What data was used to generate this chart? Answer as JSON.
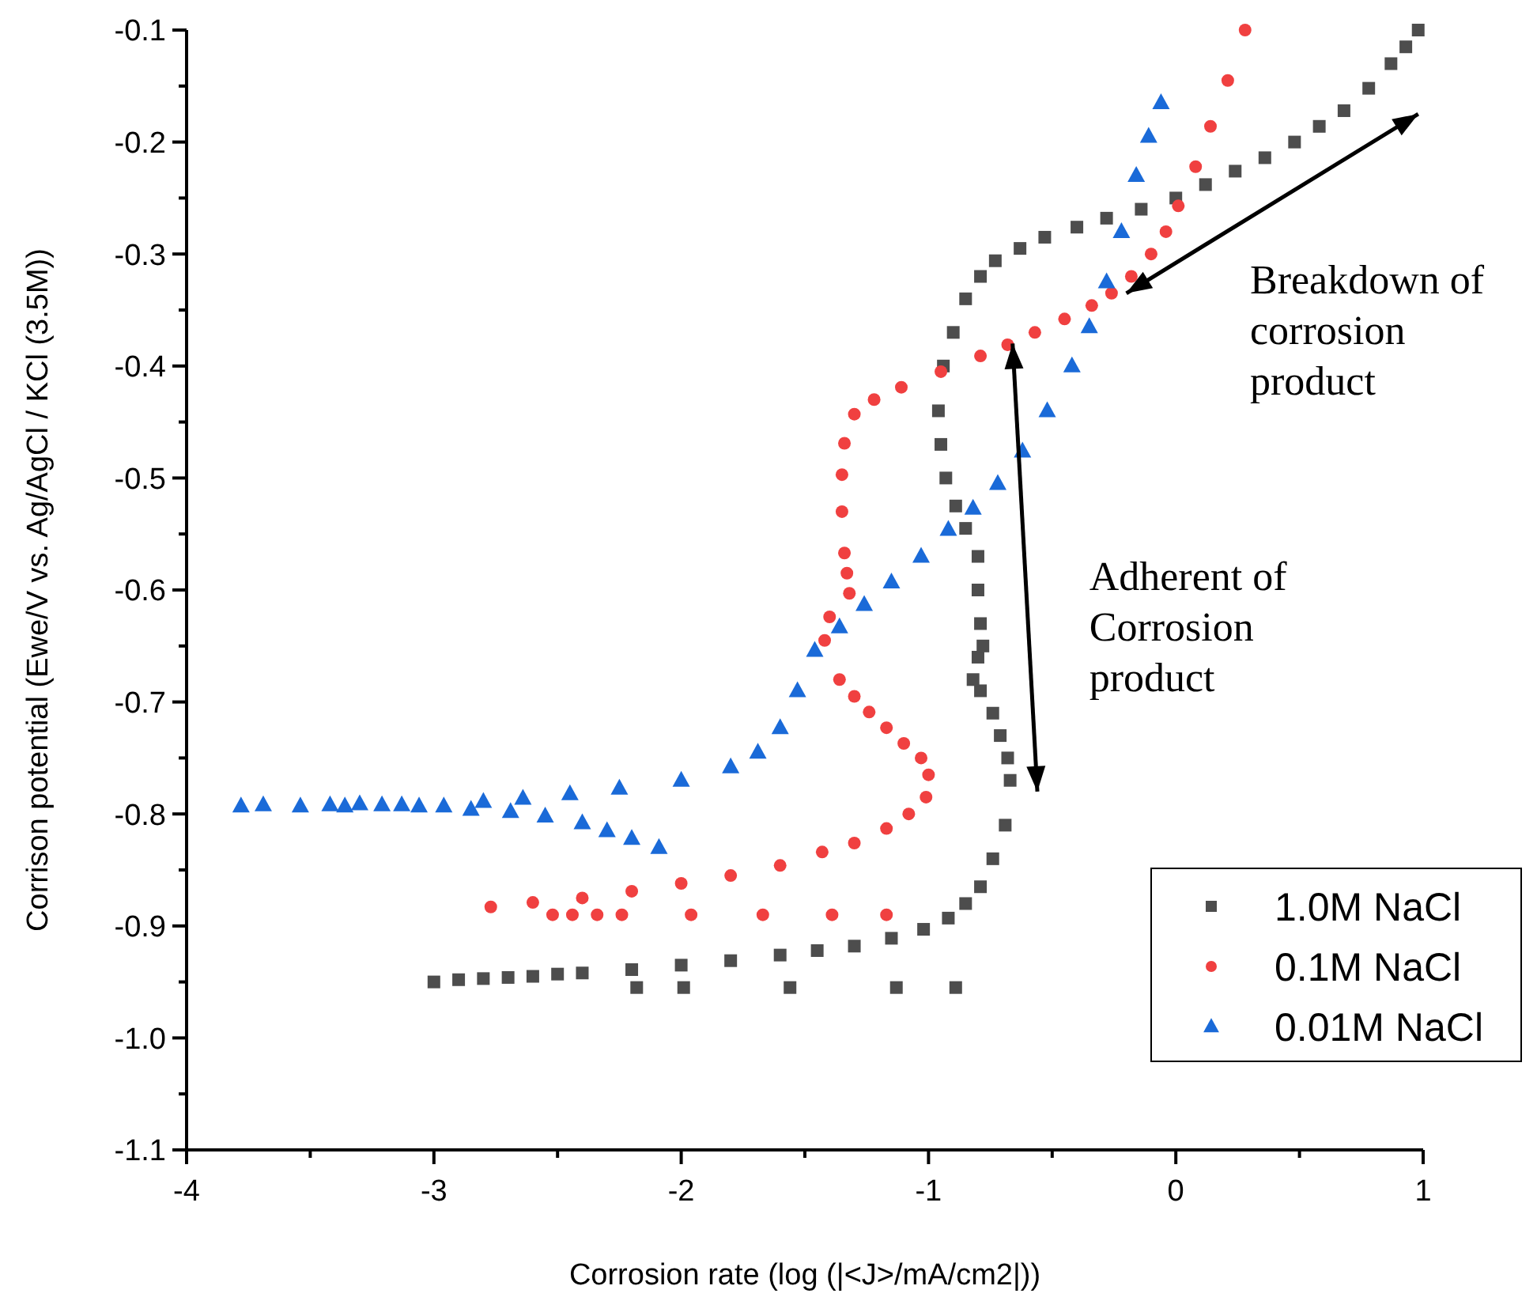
{
  "chart_data": {
    "type": "scatter",
    "xlabel": "Corrosion rate (log (|<J>/mA/cm2|))",
    "ylabel": "Corrison potential (Ewe/V vs. Ag/AgCl / KCl (3.5M))",
    "xlim": [
      -4,
      1
    ],
    "ylim": [
      -1.1,
      -0.1
    ],
    "xticks": [
      -4,
      {
        "value": -3.5,
        "label": null
      },
      -3,
      {
        "value": -2.5,
        "label": null
      },
      -2,
      {
        "value": -1.5,
        "label": null
      },
      -1,
      {
        "value": -0.5,
        "label": null
      },
      0,
      {
        "value": 0.5,
        "label": null
      },
      1
    ],
    "yticks": [
      {
        "value": -1.1,
        "label": "-1.1"
      },
      {
        "value": -1.05,
        "label": null
      },
      {
        "value": -1.0,
        "label": "-1.0"
      },
      {
        "value": -0.95,
        "label": null
      },
      {
        "value": -0.9,
        "label": "-0.9"
      },
      {
        "value": -0.85,
        "label": null
      },
      {
        "value": -0.8,
        "label": "-0.8"
      },
      {
        "value": -0.75,
        "label": null
      },
      {
        "value": -0.7,
        "label": "-0.7"
      },
      {
        "value": -0.65,
        "label": null
      },
      {
        "value": -0.6,
        "label": "-0.6"
      },
      {
        "value": -0.55,
        "label": null
      },
      {
        "value": -0.5,
        "label": "-0.5"
      },
      {
        "value": -0.45,
        "label": null
      },
      {
        "value": -0.4,
        "label": "-0.4"
      },
      {
        "value": -0.35,
        "label": null
      },
      {
        "value": -0.3,
        "label": "-0.3"
      },
      {
        "value": -0.25,
        "label": null
      },
      {
        "value": -0.2,
        "label": "-0.2"
      },
      {
        "value": -0.15,
        "label": null
      },
      {
        "value": -0.1,
        "label": "-0.1"
      }
    ],
    "legend": "bottom right",
    "grid": false,
    "annotations": [
      "Breakdown of\ncorrosion\nproduct",
      "Adherent of\nCorrosion\nproduct"
    ],
    "series": [
      {
        "name": "1.0M NaCl",
        "color": "#4d4d4d",
        "marker": "square",
        "x": [
          -2.18,
          -1.99,
          -1.56,
          -1.13,
          -0.89,
          -3.0,
          -2.9,
          -2.8,
          -2.7,
          -2.6,
          -2.5,
          -2.4,
          -2.2,
          -2.0,
          -1.8,
          -1.6,
          -1.45,
          -1.3,
          -1.15,
          -1.02,
          -0.92,
          -0.85,
          -0.79,
          -0.74,
          -0.69,
          -0.67,
          -0.68,
          -0.71,
          -0.74,
          -0.79,
          -0.82,
          -0.8,
          -0.78,
          -0.79,
          -0.8,
          -0.8,
          -0.85,
          -0.89,
          -0.93,
          -0.95,
          -0.96,
          -0.94,
          -0.9,
          -0.85,
          -0.79,
          -0.73,
          -0.63,
          -0.53,
          -0.4,
          -0.28,
          -0.14,
          0,
          0.12,
          0.24,
          0.36,
          0.48,
          0.58,
          0.68,
          0.78,
          0.87,
          0.93,
          0.98
        ],
        "values": [
          -0.955,
          -0.955,
          -0.955,
          -0.955,
          -0.955,
          -0.95,
          -0.948,
          -0.947,
          -0.946,
          -0.945,
          -0.943,
          -0.942,
          -0.939,
          -0.935,
          -0.931,
          -0.926,
          -0.922,
          -0.918,
          -0.911,
          -0.903,
          -0.893,
          -0.88,
          -0.865,
          -0.84,
          -0.81,
          -0.77,
          -0.75,
          -0.73,
          -0.71,
          -0.69,
          -0.68,
          -0.66,
          -0.65,
          -0.63,
          -0.6,
          -0.57,
          -0.545,
          -0.525,
          -0.5,
          -0.47,
          -0.44,
          -0.4,
          -0.37,
          -0.34,
          -0.32,
          -0.306,
          -0.295,
          -0.285,
          -0.276,
          -0.268,
          -0.26,
          -0.25,
          -0.238,
          -0.226,
          -0.214,
          -0.2,
          -0.186,
          -0.172,
          -0.152,
          -0.13,
          -0.115,
          -0.1
        ]
      },
      {
        "name": "0.1M NaCl",
        "color": "#f04040",
        "marker": "circle",
        "x": [
          -2.52,
          -2.44,
          -2.34,
          -2.24,
          -1.96,
          -1.67,
          -1.39,
          -1.17,
          -2.77,
          -2.6,
          -2.4,
          -2.2,
          -2.0,
          -1.8,
          -1.6,
          -1.43,
          -1.3,
          -1.17,
          -1.08,
          -1.01,
          -1.0,
          -1.03,
          -1.1,
          -1.17,
          -1.24,
          -1.3,
          -1.36,
          -1.42,
          -1.4,
          -1.32,
          -1.33,
          -1.34,
          -1.35,
          -1.35,
          -1.34,
          -1.3,
          -1.22,
          -1.11,
          -0.95,
          -0.79,
          -0.68,
          -0.57,
          -0.45,
          -0.34,
          -0.26,
          -0.18,
          -0.1,
          -0.04,
          0.01,
          0.08,
          0.14,
          0.21,
          0.28
        ],
        "values": [
          -0.89,
          -0.89,
          -0.89,
          -0.89,
          -0.89,
          -0.89,
          -0.89,
          -0.89,
          -0.883,
          -0.879,
          -0.875,
          -0.869,
          -0.862,
          -0.855,
          -0.846,
          -0.834,
          -0.826,
          -0.813,
          -0.8,
          -0.785,
          -0.765,
          -0.75,
          -0.737,
          -0.723,
          -0.709,
          -0.695,
          -0.68,
          -0.645,
          -0.624,
          -0.603,
          -0.585,
          -0.567,
          -0.53,
          -0.497,
          -0.469,
          -0.443,
          -0.43,
          -0.419,
          -0.405,
          -0.391,
          -0.381,
          -0.37,
          -0.358,
          -0.346,
          -0.335,
          -0.32,
          -0.3,
          -0.28,
          -0.257,
          -0.222,
          -0.186,
          -0.145,
          -0.1
        ]
      },
      {
        "name": "0.01M NaCl",
        "color": "#1a6ad8",
        "marker": "triangle",
        "x": [
          -2.09,
          -2.2,
          -2.3,
          -2.4,
          -2.55,
          -2.69,
          -2.85,
          -2.96,
          -3.06,
          -3.13,
          -3.21,
          -3.3,
          -3.36,
          -3.42,
          -3.54,
          -3.69,
          -3.78,
          -2.8,
          -2.64,
          -2.45,
          -2.25,
          -2.0,
          -1.8,
          -1.69,
          -1.6,
          -1.53,
          -1.46,
          -1.36,
          -1.26,
          -1.15,
          -1.03,
          -0.92,
          -0.82,
          -0.72,
          -0.62,
          -0.52,
          -0.42,
          -0.35,
          -0.28,
          -0.22,
          -0.16,
          -0.11,
          -0.06
        ],
        "values": [
          -0.83,
          -0.822,
          -0.815,
          -0.808,
          -0.802,
          -0.798,
          -0.796,
          -0.793,
          -0.793,
          -0.792,
          -0.792,
          -0.791,
          -0.793,
          -0.792,
          -0.793,
          -0.792,
          -0.793,
          -0.789,
          -0.786,
          -0.782,
          -0.777,
          -0.77,
          -0.758,
          -0.745,
          -0.723,
          -0.69,
          -0.654,
          -0.633,
          -0.613,
          -0.593,
          -0.57,
          -0.546,
          -0.527,
          -0.505,
          -0.476,
          -0.44,
          -0.4,
          -0.365,
          -0.325,
          -0.28,
          -0.23,
          -0.195,
          -0.165
        ]
      }
    ]
  }
}
